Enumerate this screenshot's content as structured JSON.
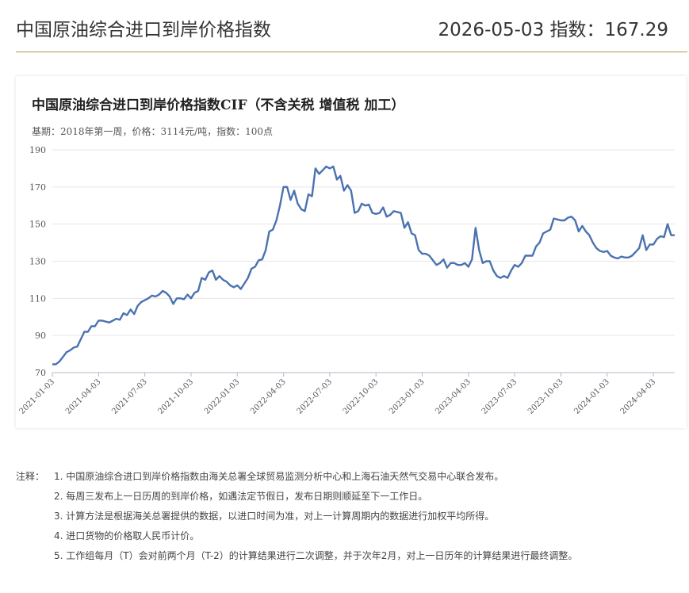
{
  "header": {
    "title": "中国原油综合进口到岸价格指数",
    "index_text": "2026-05-03 指数：167.29"
  },
  "chart": {
    "title": "中国原油综合进口到岸价格指数CIF（不含关税 增值税 加工）",
    "subtitle": "基期：2018年第一周，价格：3114元/吨，指数：100点"
  },
  "chart_data": {
    "type": "line",
    "title": "中国原油综合进口到岸价格指数CIF（不含关税 增值税 加工）",
    "subtitle": "基期：2018年第一周，价格：3114元/吨，指数：100点",
    "xlabel": "",
    "ylabel": "",
    "ylim": [
      70,
      190
    ],
    "yticks": [
      70,
      90,
      110,
      130,
      150,
      170,
      190
    ],
    "x_tick_labels": [
      "2021-01-03",
      "2021-04-03",
      "2021-07-03",
      "2021-10-03",
      "2022-01-03",
      "2022-04-03",
      "2022-07-03",
      "2022-10-03",
      "2023-01-03",
      "2023-04-03",
      "2023-07-03",
      "2023-10-03",
      "2024-01-03",
      "2024-04-03"
    ],
    "x_range": [
      "2021-01-03",
      "2024-06-09"
    ],
    "grid": "horizontal",
    "line_color": "#4a72b0",
    "series": [
      {
        "values": [
          [
            0,
            74.5
          ],
          [
            1,
            74.5
          ],
          [
            2,
            76
          ],
          [
            3,
            78.5
          ],
          [
            4,
            81
          ],
          [
            5,
            82
          ],
          [
            6,
            83.5
          ],
          [
            7,
            84
          ],
          [
            8,
            88
          ],
          [
            9,
            92
          ],
          [
            10,
            92
          ],
          [
            11,
            95
          ],
          [
            12,
            95
          ],
          [
            13,
            98
          ],
          [
            14,
            98
          ],
          [
            15,
            97.5
          ],
          [
            16,
            97
          ],
          [
            17,
            98
          ],
          [
            18,
            99
          ],
          [
            19,
            98.5
          ],
          [
            20,
            102
          ],
          [
            21,
            101
          ],
          [
            22,
            104
          ],
          [
            23,
            101.5
          ],
          [
            24,
            106
          ],
          [
            25,
            108
          ],
          [
            26,
            109
          ],
          [
            27,
            110
          ],
          [
            28,
            111.5
          ],
          [
            29,
            111
          ],
          [
            30,
            112
          ],
          [
            31,
            114
          ],
          [
            32,
            113
          ],
          [
            33,
            111
          ],
          [
            34,
            107
          ],
          [
            35,
            110
          ],
          [
            36,
            110
          ],
          [
            37,
            109.5
          ],
          [
            38,
            112
          ],
          [
            39,
            110
          ],
          [
            40,
            113
          ],
          [
            41,
            114
          ],
          [
            42,
            121
          ],
          [
            43,
            120
          ],
          [
            44,
            124
          ],
          [
            45,
            125
          ],
          [
            46,
            120
          ],
          [
            47,
            122
          ],
          [
            48,
            120
          ],
          [
            49,
            119
          ],
          [
            50,
            117
          ],
          [
            51,
            116
          ],
          [
            52,
            117
          ],
          [
            53,
            115
          ],
          [
            54,
            118
          ],
          [
            55,
            121
          ],
          [
            56,
            126
          ],
          [
            57,
            127
          ],
          [
            58,
            130.5
          ],
          [
            59,
            131
          ],
          [
            60,
            136
          ],
          [
            61,
            146
          ],
          [
            62,
            147
          ],
          [
            63,
            152
          ],
          [
            64,
            160
          ],
          [
            65,
            170
          ],
          [
            66,
            170
          ],
          [
            67,
            163
          ],
          [
            68,
            168
          ],
          [
            69,
            161
          ],
          [
            70,
            158
          ],
          [
            71,
            157
          ],
          [
            72,
            166
          ],
          [
            73,
            165
          ],
          [
            74,
            180
          ],
          [
            75,
            177
          ],
          [
            76,
            179
          ],
          [
            77,
            181
          ],
          [
            78,
            180
          ],
          [
            79,
            181
          ],
          [
            80,
            174
          ],
          [
            81,
            176
          ],
          [
            82,
            168
          ],
          [
            83,
            171
          ],
          [
            84,
            168
          ],
          [
            85,
            156
          ],
          [
            86,
            157
          ],
          [
            87,
            161
          ],
          [
            88,
            160
          ],
          [
            89,
            160.5
          ],
          [
            90,
            156
          ],
          [
            91,
            155.5
          ],
          [
            92,
            156
          ],
          [
            93,
            159
          ],
          [
            94,
            154
          ],
          [
            95,
            155
          ],
          [
            96,
            157
          ],
          [
            97,
            156.5
          ],
          [
            98,
            156
          ],
          [
            99,
            148
          ],
          [
            100,
            151
          ],
          [
            101,
            145
          ],
          [
            102,
            144
          ],
          [
            103,
            136
          ],
          [
            104,
            134
          ],
          [
            105,
            134
          ],
          [
            106,
            133
          ],
          [
            107,
            130.5
          ],
          [
            108,
            128
          ],
          [
            109,
            129
          ],
          [
            110,
            131
          ],
          [
            111,
            126.5
          ],
          [
            112,
            129
          ],
          [
            113,
            129
          ],
          [
            114,
            128
          ],
          [
            115,
            128
          ],
          [
            116,
            129
          ],
          [
            117,
            127
          ],
          [
            118,
            131
          ],
          [
            119,
            148
          ],
          [
            120,
            136
          ],
          [
            121,
            129
          ],
          [
            122,
            130
          ],
          [
            123,
            130
          ],
          [
            124,
            125
          ],
          [
            125,
            122
          ],
          [
            126,
            121
          ],
          [
            127,
            122
          ],
          [
            128,
            121
          ],
          [
            129,
            125
          ],
          [
            130,
            128
          ],
          [
            131,
            127
          ],
          [
            132,
            129
          ],
          [
            133,
            133
          ],
          [
            134,
            133
          ],
          [
            135,
            133
          ],
          [
            136,
            138
          ],
          [
            137,
            140
          ],
          [
            138,
            145
          ],
          [
            139,
            146
          ],
          [
            140,
            147
          ],
          [
            141,
            153
          ],
          [
            142,
            152.5
          ],
          [
            143,
            152
          ],
          [
            144,
            152
          ],
          [
            145,
            153.5
          ],
          [
            146,
            154
          ],
          [
            147,
            152
          ],
          [
            148,
            146
          ],
          [
            149,
            149
          ],
          [
            150,
            146
          ],
          [
            151,
            144
          ],
          [
            152,
            140
          ],
          [
            153,
            137
          ],
          [
            154,
            135.5
          ],
          [
            155,
            135
          ],
          [
            156,
            135.5
          ],
          [
            157,
            133
          ],
          [
            158,
            132
          ],
          [
            159,
            131.5
          ],
          [
            160,
            132.5
          ],
          [
            161,
            132
          ],
          [
            162,
            132
          ],
          [
            163,
            133
          ],
          [
            164,
            135
          ],
          [
            165,
            137
          ],
          [
            166,
            144
          ],
          [
            167,
            136
          ],
          [
            168,
            139
          ],
          [
            169,
            139
          ],
          [
            170,
            142
          ],
          [
            171,
            143.5
          ],
          [
            172,
            143
          ],
          [
            173,
            150
          ],
          [
            174,
            144
          ],
          [
            175,
            144
          ]
        ]
      }
    ]
  },
  "notes": {
    "label": "注释：",
    "items": [
      "1. 中国原油综合进口到岸价格指数由海关总署全球贸易监测分析中心和上海石油天然气交易中心联合发布。",
      "2. 每周三发布上一日历周的到岸价格，如遇法定节假日，发布日期则顺延至下一工作日。",
      "3. 计算方法是根据海关总署提供的数据，以进口时间为准，对上一计算周期内的数据进行加权平均所得。",
      "4. 进口货物的价格取人民币计价。",
      "5. 工作组每月（T）会对前两个月（T-2）的计算结果进行二次调整，并于次年2月，对上一日历年的计算结果进行最终调整。"
    ]
  }
}
